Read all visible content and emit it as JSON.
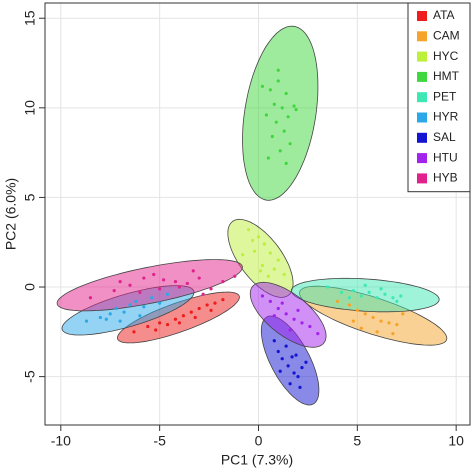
{
  "chart_data": {
    "type": "scatter",
    "x_label": "PC1 (7.3%)",
    "y_label": "PC2 (6.0%)",
    "xlim": [
      -10.8,
      10.7
    ],
    "ylim": [
      -7.7,
      15.85
    ],
    "xticks": [
      -10,
      -5,
      0,
      5,
      10
    ],
    "yticks": [
      -5,
      0,
      5,
      10,
      15
    ],
    "grid": true,
    "legend": "top-right",
    "series": [
      {
        "name": "ATA",
        "color": "#ee1c1c",
        "x": [
          -6.3,
          -5.6,
          -5.0,
          -4.6,
          -4.2,
          -3.8,
          -3.4,
          -3.0,
          -2.6,
          -2.2,
          -1.8,
          -5.2,
          -4.0,
          -3.2,
          -2.4
        ],
        "y": [
          -2.5,
          -2.2,
          -2.0,
          -2.1,
          -1.8,
          -1.6,
          -1.4,
          -1.2,
          -1.0,
          -0.9,
          -0.7,
          -2.4,
          -2.0,
          -1.7,
          -1.3
        ],
        "ellipse": {
          "cx": -4.05,
          "cy": -1.7,
          "rx": 3.3,
          "ry": 0.8,
          "angle": 21.5
        }
      },
      {
        "name": "CAM",
        "color": "#f5a32a",
        "x": [
          4.0,
          4.6,
          5.0,
          5.4,
          5.8,
          6.2,
          6.6,
          7.0,
          5.2,
          6.0,
          6.8,
          4.8,
          7.3
        ],
        "y": [
          -0.8,
          -1.0,
          -1.3,
          -1.5,
          -1.7,
          -1.9,
          -2.0,
          -2.1,
          -2.3,
          -2.5,
          -2.6,
          -1.9,
          -1.5
        ],
        "ellipse": {
          "cx": 5.8,
          "cy": -1.6,
          "rx": 3.95,
          "ry": 1.0,
          "angle": -20
        }
      },
      {
        "name": "HYC",
        "color": "#bdf03a",
        "x": [
          -0.5,
          0.0,
          0.3,
          -0.2,
          0.6,
          1.0,
          0.2,
          -0.8,
          0.8,
          0.5,
          1.3,
          -0.3,
          0.1
        ],
        "y": [
          3.2,
          2.8,
          2.4,
          2.0,
          1.9,
          1.5,
          1.2,
          1.8,
          1.0,
          0.6,
          0.7,
          2.6,
          0.9
        ],
        "ellipse": {
          "cx": 0.1,
          "cy": 1.6,
          "rx": 2.5,
          "ry": 1.1,
          "angle": -56.8
        }
      },
      {
        "name": "HMT",
        "color": "#3ed83e",
        "x": [
          0.2,
          0.6,
          1.0,
          1.4,
          0.8,
          1.2,
          1.8,
          0.4,
          1.5,
          0.9,
          1.3,
          0.7,
          1.6,
          1.1,
          0.5,
          1.9,
          1.0,
          1.4
        ],
        "y": [
          11.2,
          11.0,
          11.5,
          10.8,
          10.2,
          10.0,
          10.1,
          9.6,
          9.5,
          9.2,
          8.7,
          8.4,
          8.0,
          7.6,
          7.2,
          9.9,
          12.1,
          6.9
        ],
        "ellipse": {
          "cx": 1.1,
          "cy": 9.7,
          "rx": 4.9,
          "ry": 1.8,
          "angle": 82
        }
      },
      {
        "name": "PET",
        "color": "#3de8b4",
        "x": [
          3.5,
          4.2,
          4.8,
          5.2,
          5.6,
          6.0,
          6.4,
          6.8,
          7.2,
          5.4,
          6.2,
          4.6,
          7.0
        ],
        "y": [
          0.0,
          -0.3,
          -0.2,
          -0.5,
          -0.3,
          -0.6,
          -0.4,
          -0.6,
          -0.5,
          0.1,
          -0.1,
          -0.6,
          -0.8
        ],
        "ellipse": {
          "cx": 5.4,
          "cy": -0.45,
          "rx": 3.75,
          "ry": 0.9,
          "angle": -4
        }
      },
      {
        "name": "HYR",
        "color": "#2aa8e8",
        "x": [
          -8.7,
          -8.0,
          -7.5,
          -7.2,
          -6.8,
          -6.5,
          -6.2,
          -5.8,
          -5.4,
          -7.7,
          -6.0,
          -4.6,
          -7.0,
          -5.0
        ],
        "y": [
          -1.9,
          -1.7,
          -1.5,
          -1.2,
          -1.4,
          -1.0,
          -0.8,
          -1.1,
          -0.6,
          -1.8,
          -1.6,
          -0.4,
          -1.9,
          -0.9
        ],
        "ellipse": {
          "cx": -6.6,
          "cy": -1.3,
          "rx": 3.5,
          "ry": 0.9,
          "angle": 18
        }
      },
      {
        "name": "SAL",
        "color": "#1414d2",
        "x": [
          0.8,
          1.0,
          1.2,
          1.5,
          1.8,
          2.0,
          2.2,
          1.4,
          1.6,
          2.4,
          1.9,
          1.1,
          2.1,
          1.7
        ],
        "y": [
          -3.0,
          -3.6,
          -4.0,
          -4.4,
          -4.8,
          -5.0,
          -4.5,
          -3.3,
          -5.4,
          -4.2,
          -3.8,
          -4.7,
          -5.6,
          -3.9
        ],
        "ellipse": {
          "cx": 1.6,
          "cy": -4.1,
          "rx": 2.7,
          "ry": 1.0,
          "angle": -65
        }
      },
      {
        "name": "HTU",
        "color": "#a222ee",
        "x": [
          0.2,
          0.6,
          1.0,
          1.4,
          1.8,
          2.2,
          2.6,
          0.8,
          1.2,
          2.0,
          3.0,
          1.6
        ],
        "y": [
          -0.5,
          -0.8,
          -1.2,
          -1.5,
          -1.8,
          -2.0,
          -2.2,
          -1.6,
          -0.9,
          -1.3,
          -2.6,
          -2.4
        ],
        "ellipse": {
          "cx": 1.5,
          "cy": -1.55,
          "rx": 2.4,
          "ry": 1.1,
          "angle": -42.5
        }
      },
      {
        "name": "HYB",
        "color": "#e2228c",
        "x": [
          -8.5,
          -7.3,
          -6.5,
          -5.8,
          -5.3,
          -4.8,
          -4.2,
          -3.6,
          -3.0,
          -2.4,
          -1.8,
          -1.2,
          -6.0,
          -5.0,
          -4.0,
          -2.8,
          -7.0,
          -3.3
        ],
        "y": [
          -0.6,
          -0.2,
          0.1,
          0.5,
          0.7,
          0.4,
          0.3,
          0.2,
          0.5,
          -0.1,
          0.3,
          0.6,
          -0.3,
          -0.1,
          0.0,
          -0.4,
          0.3,
          0.9
        ],
        "ellipse": {
          "cx": -5.5,
          "cy": 0.1,
          "rx": 4.8,
          "ry": 1.0,
          "angle": 12.6
        }
      }
    ]
  }
}
